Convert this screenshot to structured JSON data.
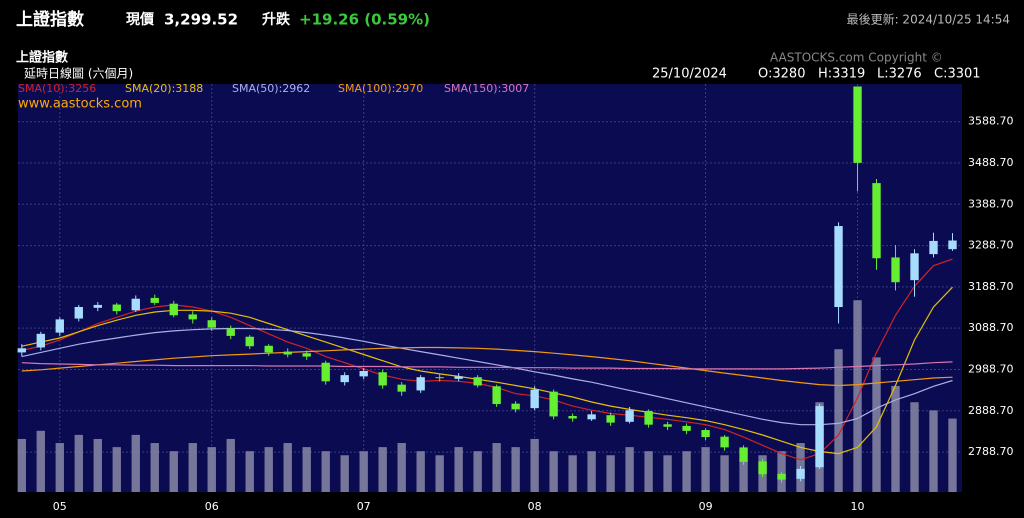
{
  "header": {
    "title": "上證指數",
    "price_label": "現價",
    "price": "3,299.52",
    "change_label": "升跌",
    "change": "+19.26 (0.59%)",
    "updated": "最後更新: 2024/10/25 14:54"
  },
  "chart_data": {
    "type": "candlestick",
    "title": "上證指數",
    "subtitle": "延時日線圖 (六個月)",
    "watermark": "AASTOCKS.com Copyright ©",
    "website": "www.aastocks.com",
    "info": {
      "date": "25/10/2024",
      "open": "O:3280",
      "high": "H:3319",
      "low": "L:3276",
      "close": "C:3301"
    },
    "up_color": "#a8dcff",
    "down_color": "#66ee33",
    "open": [
      3030,
      3042,
      3078,
      3112,
      3138,
      3146,
      3132,
      3162,
      3148,
      3122,
      3108,
      3088,
      3068,
      3046,
      3032,
      3028,
      3005,
      2958,
      2972,
      2982,
      2952,
      2938,
      2970,
      2966,
      2970,
      2948,
      2906,
      2895,
      2935,
      2876,
      2868,
      2878,
      2862,
      2888,
      2856,
      2852,
      2842,
      2826,
      2800,
      2766,
      2736,
      2724,
      2752,
      3140,
      3674,
      3440,
      3260,
      3205,
      3268,
      3280
    ],
    "high": [
      3050,
      3080,
      3115,
      3145,
      3152,
      3150,
      3168,
      3170,
      3155,
      3130,
      3115,
      3095,
      3072,
      3050,
      3040,
      3035,
      3010,
      2982,
      2992,
      2988,
      2958,
      2975,
      2978,
      2980,
      2975,
      2952,
      2912,
      2948,
      2940,
      2882,
      2888,
      2884,
      2898,
      2892,
      2862,
      2858,
      2846,
      2830,
      2805,
      2772,
      2740,
      2755,
      2905,
      3345,
      3674,
      3450,
      3290,
      3280,
      3320,
      3319
    ],
    "low": [
      3020,
      3035,
      3070,
      3105,
      3130,
      3122,
      3128,
      3145,
      3115,
      3100,
      3082,
      3062,
      3038,
      3022,
      3018,
      3012,
      2952,
      2950,
      2965,
      2942,
      2925,
      2932,
      2960,
      2960,
      2945,
      2898,
      2885,
      2890,
      2868,
      2862,
      2864,
      2852,
      2858,
      2848,
      2842,
      2832,
      2818,
      2792,
      2758,
      2728,
      2715,
      2718,
      2748,
      3100,
      3420,
      3230,
      3180,
      3165,
      3260,
      3276
    ],
    "close": [
      3040,
      3075,
      3110,
      3140,
      3145,
      3130,
      3160,
      3150,
      3120,
      3110,
      3090,
      3070,
      3045,
      3030,
      3025,
      3020,
      2960,
      2975,
      2985,
      2950,
      2935,
      2970,
      2968,
      2972,
      2950,
      2905,
      2892,
      2940,
      2875,
      2870,
      2880,
      2860,
      2890,
      2855,
      2850,
      2840,
      2825,
      2800,
      2765,
      2735,
      2722,
      2748,
      2900,
      3336,
      3489,
      3258,
      3200,
      3270,
      3300,
      3301
    ],
    "series": [
      {
        "name": "SMA(10):3256",
        "color": "#d02424",
        "values": [
          3035,
          3045,
          3060,
          3080,
          3100,
          3115,
          3130,
          3140,
          3145,
          3140,
          3130,
          3115,
          3095,
          3075,
          3055,
          3040,
          3020,
          3005,
          2990,
          2975,
          2965,
          2960,
          2962,
          2960,
          2955,
          2945,
          2930,
          2925,
          2915,
          2900,
          2890,
          2882,
          2878,
          2873,
          2868,
          2862,
          2855,
          2843,
          2825,
          2805,
          2785,
          2770,
          2785,
          2830,
          2920,
          3030,
          3120,
          3190,
          3240,
          3256
        ]
      },
      {
        "name": "SMA(20):3188",
        "color": "#e6c000",
        "values": [
          3045,
          3055,
          3065,
          3080,
          3095,
          3108,
          3120,
          3128,
          3132,
          3132,
          3130,
          3125,
          3115,
          3100,
          3085,
          3070,
          3055,
          3040,
          3025,
          3010,
          2995,
          2985,
          2978,
          2972,
          2965,
          2958,
          2950,
          2942,
          2932,
          2922,
          2910,
          2900,
          2892,
          2885,
          2878,
          2872,
          2865,
          2855,
          2843,
          2830,
          2815,
          2800,
          2790,
          2785,
          2800,
          2850,
          2950,
          3060,
          3140,
          3188
        ]
      },
      {
        "name": "SMA(50):2962",
        "color": "#aab0e6",
        "values": [
          3020,
          3030,
          3040,
          3050,
          3058,
          3065,
          3072,
          3078,
          3082,
          3085,
          3087,
          3088,
          3088,
          3086,
          3083,
          3078,
          3072,
          3065,
          3057,
          3048,
          3040,
          3032,
          3024,
          3016,
          3008,
          3000,
          2992,
          2983,
          2975,
          2966,
          2958,
          2948,
          2938,
          2928,
          2918,
          2908,
          2898,
          2888,
          2878,
          2868,
          2860,
          2855,
          2855,
          2858,
          2870,
          2895,
          2915,
          2930,
          2948,
          2962
        ]
      },
      {
        "name": "SMA(100):2970",
        "color": "#f09a10",
        "values": [
          2985,
          2988,
          2992,
          2996,
          3000,
          3004,
          3008,
          3012,
          3016,
          3019,
          3022,
          3024,
          3026,
          3028,
          3030,
          3032,
          3034,
          3036,
          3038,
          3040,
          3041,
          3042,
          3042,
          3041,
          3040,
          3038,
          3035,
          3032,
          3028,
          3024,
          3020,
          3015,
          3010,
          3004,
          2998,
          2992,
          2986,
          2980,
          2974,
          2968,
          2962,
          2957,
          2952,
          2950,
          2952,
          2956,
          2960,
          2964,
          2968,
          2970
        ]
      },
      {
        "name": "SMA(150):3007",
        "color": "#d877b0",
        "values": [
          3005,
          3003,
          3002,
          3001,
          3000,
          3000,
          2999,
          2999,
          2998,
          2998,
          2998,
          2998,
          2998,
          2997,
          2997,
          2997,
          2997,
          2996,
          2996,
          2996,
          2995,
          2995,
          2995,
          2994,
          2994,
          2994,
          2993,
          2993,
          2993,
          2992,
          2992,
          2992,
          2991,
          2991,
          2991,
          2990,
          2990,
          2990,
          2990,
          2990,
          2990,
          2991,
          2992,
          2994,
          2996,
          2998,
          3000,
          3002,
          3005,
          3007
        ]
      }
    ],
    "volume": {
      "color": "#8a8aa8",
      "values": [
        13,
        15,
        12,
        14,
        13,
        11,
        14,
        12,
        10,
        12,
        11,
        13,
        10,
        11,
        12,
        11,
        10,
        9,
        10,
        11,
        12,
        10,
        9,
        11,
        10,
        12,
        11,
        13,
        10,
        9,
        10,
        9,
        11,
        10,
        9,
        10,
        11,
        9,
        8,
        9,
        10,
        12,
        22,
        35,
        47,
        33,
        26,
        22,
        20,
        18
      ]
    },
    "xlim": [
      -0.2,
      49.5
    ],
    "xticks": [
      {
        "value": 2,
        "label": "05"
      },
      {
        "value": 10,
        "label": "06"
      },
      {
        "value": 18,
        "label": "07"
      },
      {
        "value": 27,
        "label": "08"
      },
      {
        "value": 36,
        "label": "09"
      },
      {
        "value": 44,
        "label": "10"
      }
    ],
    "ylim": [
      2692,
      3680
    ],
    "yticks": [
      {
        "value": 2788.7,
        "label": "2788.70"
      },
      {
        "value": 2888.7,
        "label": "2888.70"
      },
      {
        "value": 2988.7,
        "label": "2988.70"
      },
      {
        "value": 3088.7,
        "label": "3088.70"
      },
      {
        "value": 3188.7,
        "label": "3188.70"
      },
      {
        "value": 3288.7,
        "label": "3288.70"
      },
      {
        "value": 3388.7,
        "label": "3388.70"
      },
      {
        "value": 3488.7,
        "label": "3488.70"
      },
      {
        "value": 3588.7,
        "label": "3588.70"
      }
    ],
    "y2lim": [
      0,
      100
    ],
    "grid": true
  }
}
